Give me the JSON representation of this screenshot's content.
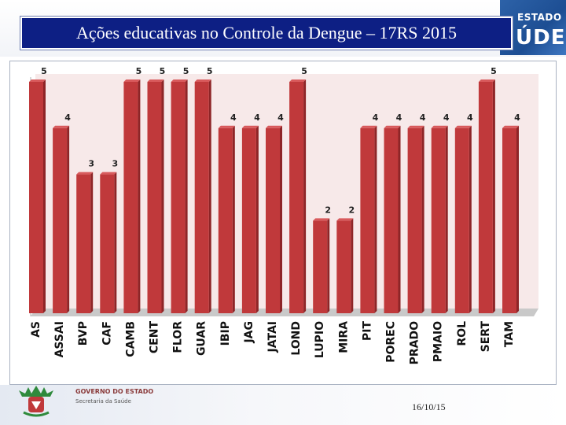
{
  "slide": {
    "title": "Ações educativas no Controle da Dengue – 17RS 2015",
    "date": "16/10/15"
  },
  "branding": {
    "top_right_small": "ESTADO",
    "top_right_big": "ÚDE",
    "gov_line1": "GOVERNO DO ESTADO",
    "gov_line2": "Secretaria da Saúde"
  },
  "colors": {
    "bar": "#c0393b",
    "bar_top": "#d85a5c",
    "bar_side": "#8e2527",
    "plot_bg": "#f7e9e9",
    "title_bg": "#0d1f84"
  },
  "chart_data": {
    "type": "bar",
    "title": "",
    "xlabel": "",
    "ylabel": "",
    "ylim": [
      0,
      5
    ],
    "grid": false,
    "legend": "none",
    "categories": [
      "AS",
      "ASSAI",
      "BVP",
      "CAF",
      "CAMB",
      "CENT",
      "FLOR",
      "GUAR",
      "IBIP",
      "JAG",
      "JATAI",
      "LOND",
      "LUPIO",
      "MIRA",
      "PIT",
      "POREC",
      "PRADO",
      "PMAIO",
      "ROL",
      "SERT",
      "TAM"
    ],
    "values": [
      5,
      4,
      3,
      3,
      5,
      5,
      5,
      5,
      4,
      4,
      4,
      5,
      2,
      2,
      4,
      4,
      4,
      4,
      4,
      5,
      4
    ],
    "data_labels": [
      "5",
      "4",
      "3",
      "3",
      "5",
      "5",
      "5",
      "5",
      "4",
      "4",
      "4",
      "5",
      "2",
      "2",
      "4",
      "4",
      "4",
      "4",
      "4",
      "5",
      "4"
    ]
  }
}
